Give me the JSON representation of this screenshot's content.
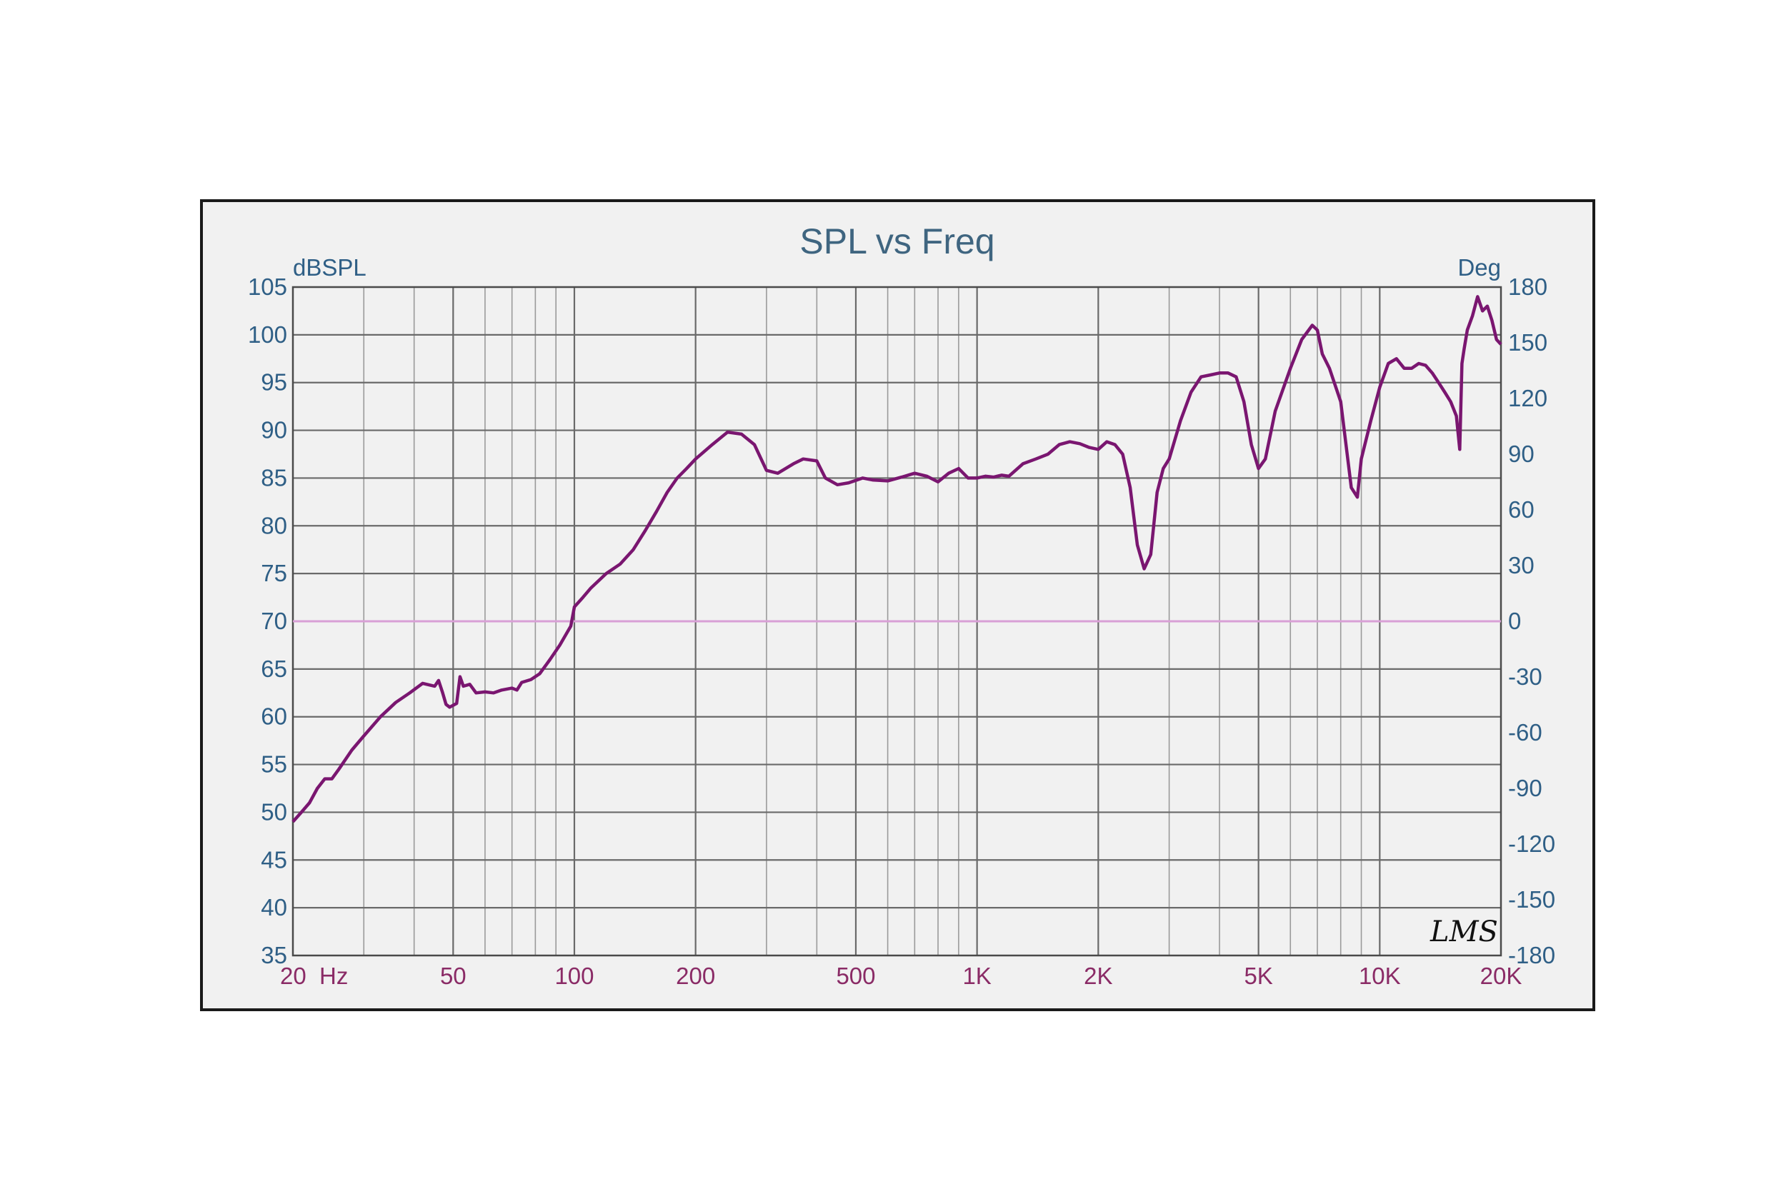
{
  "chart_data": {
    "type": "line",
    "title": "SPL vs Freq",
    "ylabel": "dBSPL",
    "y2label": "Deg",
    "xscale": "log",
    "xlim": [
      20,
      20000
    ],
    "ylim": [
      35,
      105
    ],
    "y2lim": [
      -180,
      180
    ],
    "grid": true,
    "x_tick_labels": [
      {
        "value": 20,
        "label": "20  Hz"
      },
      {
        "value": 50,
        "label": "50"
      },
      {
        "value": 100,
        "label": "100"
      },
      {
        "value": 200,
        "label": "200"
      },
      {
        "value": 500,
        "label": "500"
      },
      {
        "value": 1000,
        "label": "1K"
      },
      {
        "value": 2000,
        "label": "2K"
      },
      {
        "value": 5000,
        "label": "5K"
      },
      {
        "value": 10000,
        "label": "10K"
      },
      {
        "value": 20000,
        "label": "20K"
      }
    ],
    "y_ticks": [
      105,
      100,
      95,
      90,
      85,
      80,
      75,
      70,
      65,
      60,
      55,
      50,
      45,
      40,
      35
    ],
    "y2_ticks": [
      180,
      150,
      120,
      90,
      60,
      30,
      0,
      -30,
      -60,
      -90,
      -120,
      -150,
      -180
    ],
    "reference_line": {
      "y": 70,
      "color": "#d9a0d6"
    },
    "series": [
      {
        "color": "#7a1670",
        "x": [
          20,
          21,
          22,
          23,
          24,
          25,
          26,
          28,
          30,
          33,
          36,
          39,
          42,
          45,
          46,
          47,
          48,
          49,
          51,
          52,
          53,
          55,
          57,
          60,
          63,
          66,
          70,
          72,
          74,
          78,
          82,
          87,
          92,
          98,
          100,
          105,
          110,
          120,
          130,
          140,
          150,
          160,
          170,
          180,
          190,
          200,
          220,
          240,
          260,
          280,
          300,
          320,
          350,
          370,
          400,
          420,
          450,
          480,
          520,
          550,
          600,
          650,
          700,
          750,
          800,
          850,
          900,
          950,
          1000,
          1050,
          1100,
          1150,
          1200,
          1300,
          1400,
          1500,
          1600,
          1700,
          1800,
          1900,
          2000,
          2100,
          2200,
          2300,
          2400,
          2500,
          2600,
          2700,
          2800,
          2900,
          3000,
          3200,
          3400,
          3600,
          3800,
          4000,
          4200,
          4400,
          4600,
          4800,
          5000,
          5200,
          5500,
          6000,
          6400,
          6800,
          7000,
          7200,
          7500,
          8000,
          8500,
          8800,
          9000,
          9500,
          10000,
          10500,
          11000,
          11500,
          12000,
          12500,
          13000,
          13500,
          14000,
          14500,
          15000,
          15500,
          15800,
          16000,
          16200,
          16500,
          17000,
          17500,
          18000,
          18500,
          19000,
          19500,
          20000
        ],
        "y": [
          49.0,
          50.0,
          51.0,
          52.5,
          53.5,
          53.5,
          54.5,
          56.5,
          58.0,
          60.0,
          61.5,
          62.5,
          63.5,
          63.2,
          63.8,
          62.6,
          61.3,
          61.0,
          61.4,
          64.2,
          63.2,
          63.4,
          62.5,
          62.6,
          62.5,
          62.8,
          63.0,
          62.8,
          63.6,
          63.9,
          64.5,
          66.0,
          67.5,
          69.5,
          71.5,
          72.5,
          73.5,
          75.0,
          76.0,
          77.5,
          79.5,
          81.5,
          83.5,
          85.0,
          86.0,
          87.0,
          88.5,
          89.8,
          89.6,
          88.5,
          85.8,
          85.5,
          86.5,
          87.0,
          86.8,
          85.0,
          84.3,
          84.5,
          85.0,
          84.8,
          84.7,
          85.1,
          85.5,
          85.2,
          84.6,
          85.5,
          86.0,
          85.0,
          85.0,
          85.2,
          85.1,
          85.3,
          85.2,
          86.5,
          87.0,
          87.5,
          88.5,
          88.8,
          88.6,
          88.2,
          88.0,
          88.8,
          88.5,
          87.5,
          84.0,
          78.0,
          75.5,
          77.0,
          83.5,
          86.0,
          87.0,
          91.0,
          94.0,
          95.6,
          95.8,
          96.0,
          96.0,
          95.6,
          93.0,
          88.5,
          86.0,
          87.0,
          92.0,
          96.5,
          99.5,
          101.0,
          100.5,
          98.0,
          96.5,
          93.0,
          84.0,
          83.0,
          87.0,
          91.0,
          94.5,
          97.0,
          97.5,
          96.5,
          96.5,
          97.0,
          96.8,
          96.0,
          95.0,
          94.0,
          93.0,
          91.5,
          88.0,
          97.0,
          98.5,
          100.5,
          102.0,
          104.0,
          102.5,
          103.0,
          101.5,
          99.5,
          99.0
        ]
      }
    ]
  },
  "logo_text": "LMS"
}
